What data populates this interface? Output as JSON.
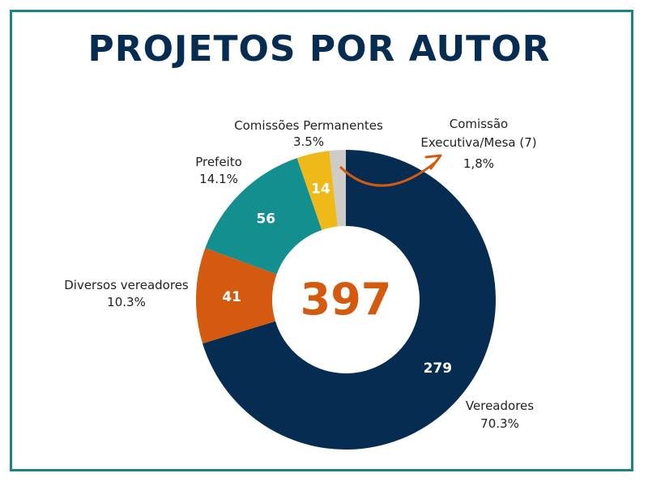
{
  "title": "PROJETOS POR AUTOR",
  "chart_data": {
    "type": "pie",
    "title": "PROJETOS POR AUTOR",
    "total": "397",
    "slices": [
      {
        "name": "Vereadores",
        "value": 279,
        "value_label": "279",
        "percent_label": "70.3%",
        "color": "#062c52"
      },
      {
        "name": "Diversos vereadores",
        "value": 41,
        "value_label": "41",
        "percent_label": "10.3%",
        "color": "#d35a0f"
      },
      {
        "name": "Prefeito",
        "value": 56,
        "value_label": "56",
        "percent_label": "14.1%",
        "color": "#148f8f"
      },
      {
        "name": "Comissões Permanentes",
        "value": 14,
        "value_label": "14",
        "percent_label": "3.5%",
        "color": "#f0b91a"
      },
      {
        "name": "Comissão Executiva/Mesa (7)",
        "value": 7,
        "value_label": "",
        "percent_label": "1,8%",
        "color": "#cfcbc6"
      }
    ],
    "arrow_color": "#d35a0f"
  }
}
